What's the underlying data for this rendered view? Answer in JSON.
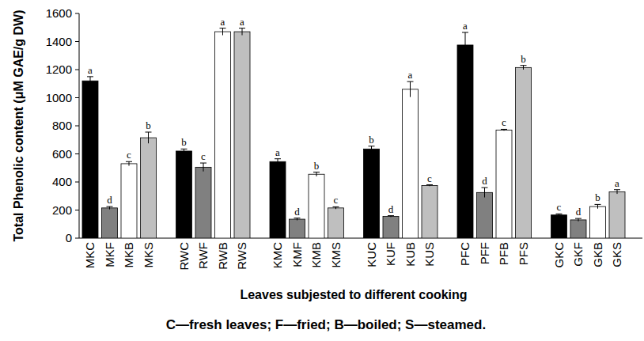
{
  "chart_data": {
    "type": "bar",
    "y_label": "Total Phenolic content (μM GAE/g DW)",
    "x_label": "Leaves subjested to different cooking",
    "caption": "C—fresh leaves; F—fried; B—boiled; S—steamed.",
    "categories": [
      "MKC",
      "MKF",
      "MKB",
      "MKS",
      "RWC",
      "RWF",
      "RWB",
      "RWS",
      "KMC",
      "KMF",
      "KMB",
      "KMS",
      "KUC",
      "KUF",
      "KUB",
      "KUS",
      "PFC",
      "PFF",
      "PFB",
      "PFS",
      "GKC",
      "GKF",
      "GKB",
      "GKS"
    ],
    "values": [
      1120,
      215,
      530,
      715,
      620,
      505,
      1470,
      1470,
      545,
      135,
      455,
      215,
      635,
      155,
      1060,
      375,
      1375,
      325,
      770,
      1215,
      165,
      130,
      225,
      330
    ],
    "errors": [
      30,
      10,
      15,
      40,
      15,
      30,
      25,
      25,
      20,
      8,
      15,
      8,
      20,
      5,
      55,
      5,
      90,
      35,
      5,
      15,
      8,
      10,
      15,
      15
    ],
    "letters": [
      "a",
      "d",
      "c",
      "b",
      "b",
      "c",
      "a",
      "a",
      "a",
      "d",
      "b",
      "c",
      "b",
      "d",
      "a",
      "c",
      "a",
      "d",
      "c",
      "b",
      "c",
      "d",
      "b",
      "a"
    ],
    "colors": [
      "#000000",
      "#808080",
      "#ffffff",
      "#bfbfbf",
      "#000000",
      "#808080",
      "#ffffff",
      "#bfbfbf",
      "#000000",
      "#808080",
      "#ffffff",
      "#bfbfbf",
      "#000000",
      "#808080",
      "#ffffff",
      "#bfbfbf",
      "#000000",
      "#808080",
      "#ffffff",
      "#bfbfbf",
      "#000000",
      "#808080",
      "#ffffff",
      "#bfbfbf"
    ],
    "ylim": [
      0,
      1600
    ],
    "yticks": [
      0,
      200,
      400,
      600,
      800,
      1000,
      1200,
      1400,
      1600
    ],
    "grid": false
  }
}
